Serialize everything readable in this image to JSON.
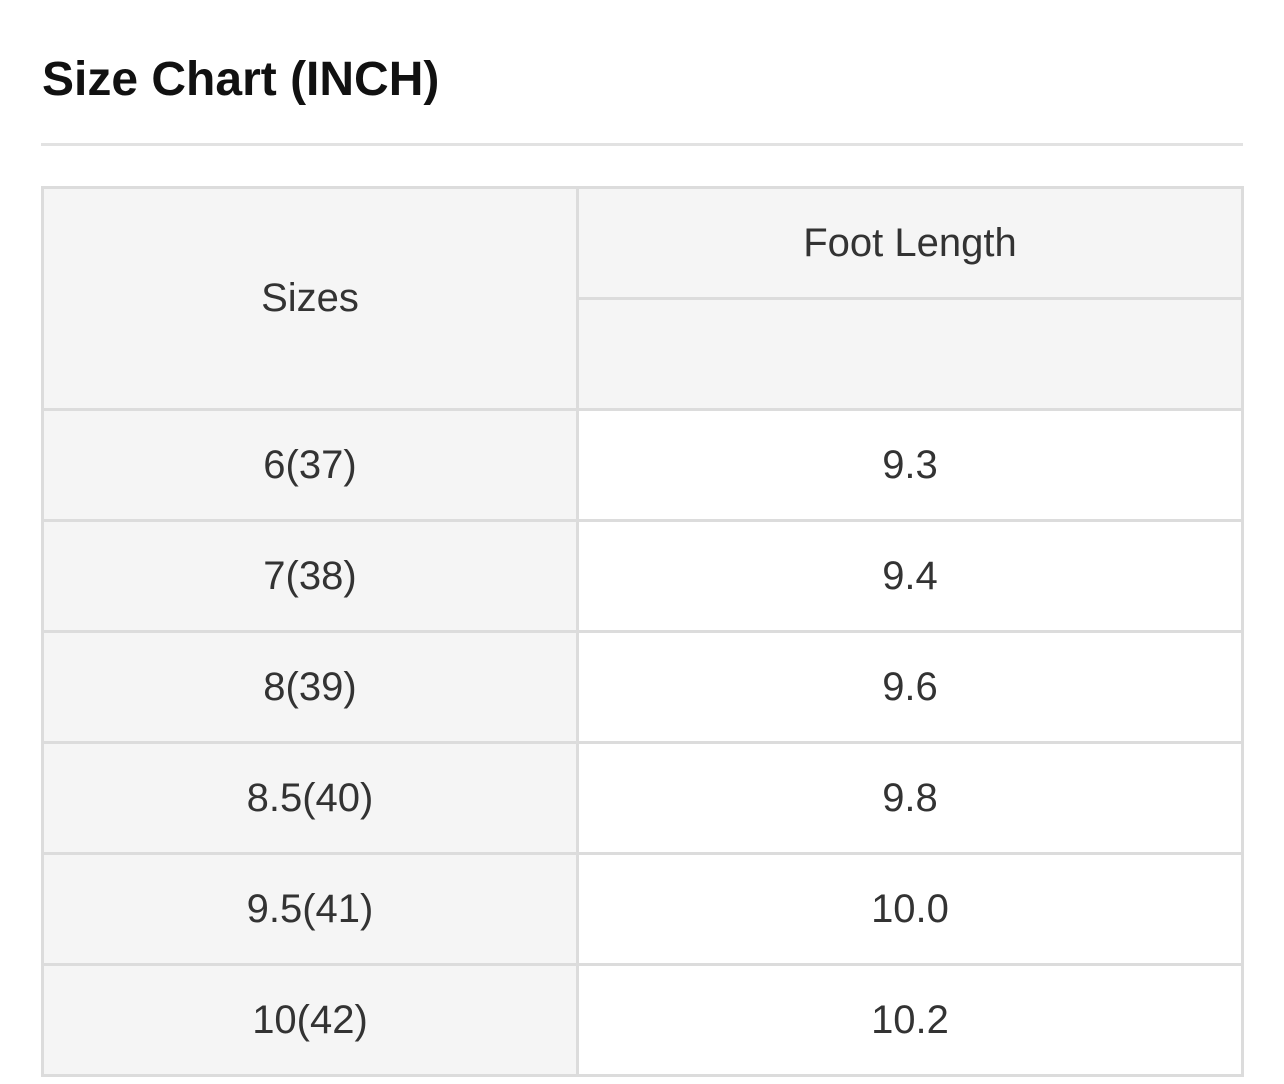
{
  "title": "Size Chart (INCH)",
  "table": {
    "headers": {
      "sizes": "Sizes",
      "foot_length": "Foot Length",
      "foot_length_sub": ""
    },
    "rows": [
      {
        "size": "6(37)",
        "foot_length": "9.3"
      },
      {
        "size": "7(38)",
        "foot_length": "9.4"
      },
      {
        "size": "8(39)",
        "foot_length": "9.6"
      },
      {
        "size": "8.5(40)",
        "foot_length": "9.8"
      },
      {
        "size": "9.5(41)",
        "foot_length": "10.0"
      },
      {
        "size": "10(42)",
        "foot_length": "10.2"
      }
    ]
  }
}
